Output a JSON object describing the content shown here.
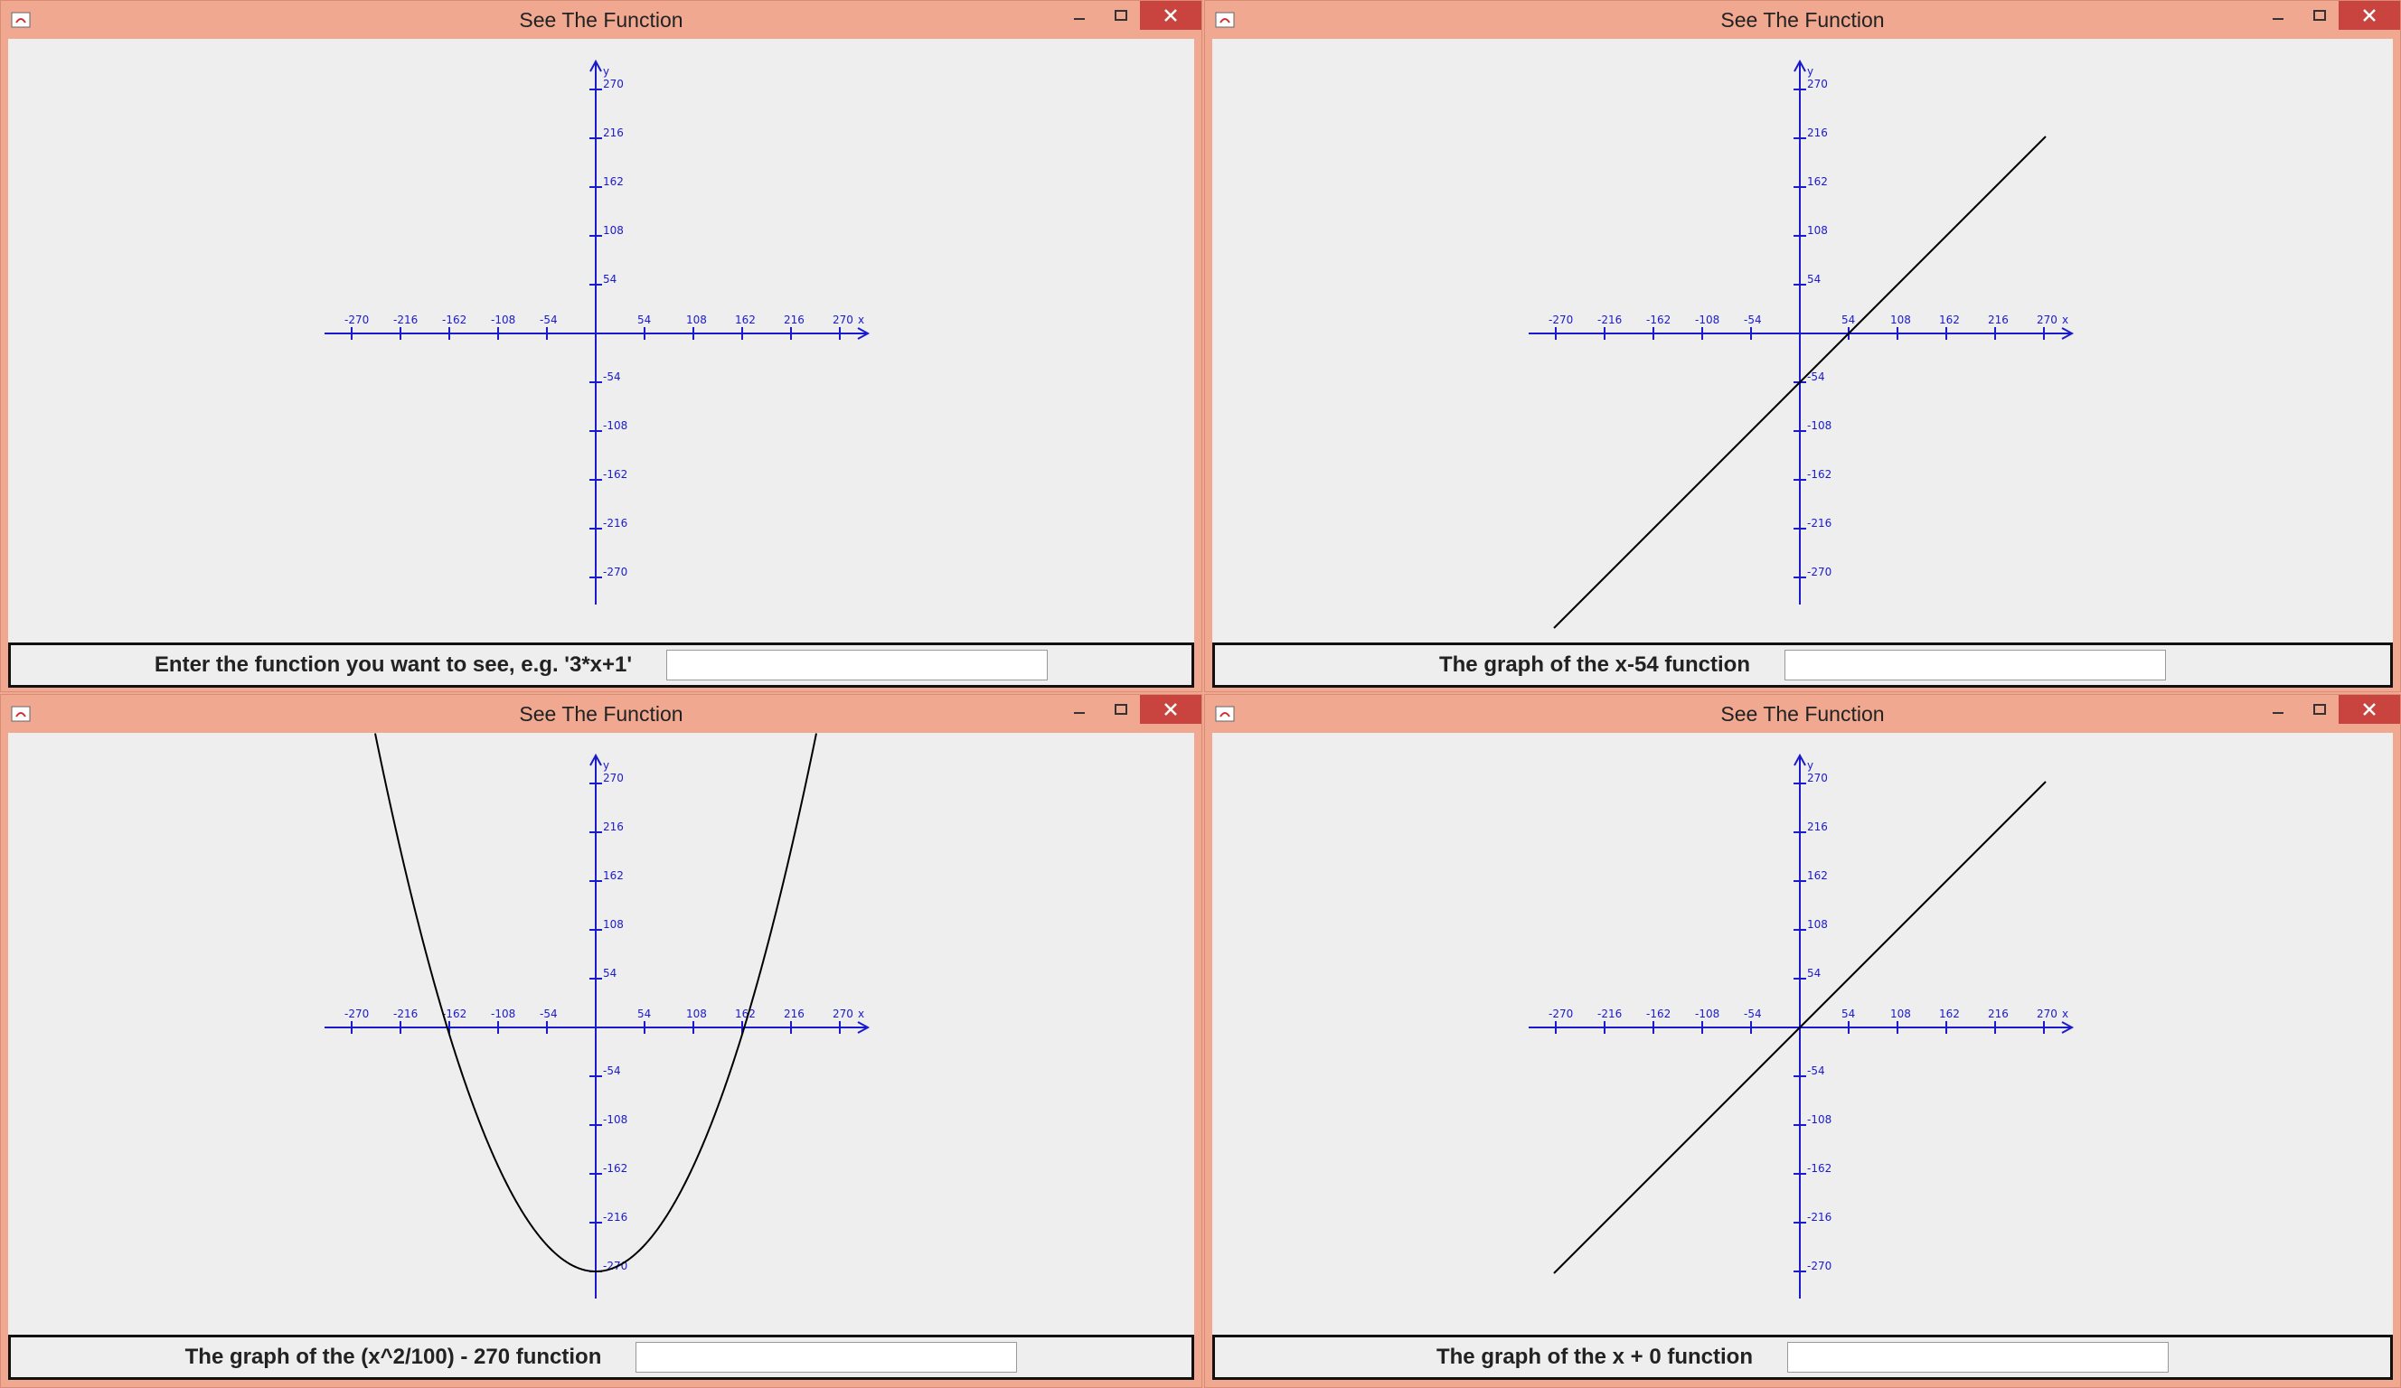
{
  "windows": [
    {
      "id": "w1",
      "title": "See The Function",
      "footer_label": "Enter the function you want to see, e.g. '3*x+1'",
      "input_value": "",
      "function": "none"
    },
    {
      "id": "w2",
      "title": "See The Function",
      "footer_label": "The graph of the x-54 function",
      "input_value": "",
      "function": "x-54"
    },
    {
      "id": "w3",
      "title": "See The Function",
      "footer_label": "The graph of the (x^2/100) - 270 function",
      "input_value": "",
      "function": "(x^2/100) - 270"
    },
    {
      "id": "w4",
      "title": "See The Function",
      "footer_label": "The graph of the x + 0 function",
      "input_value": "",
      "function": "x + 0"
    }
  ],
  "axes": {
    "x_ticks": [
      "-270",
      "-216",
      "-162",
      "-108",
      "-54",
      "54",
      "108",
      "162",
      "216",
      "270"
    ],
    "y_ticks": [
      "270",
      "216",
      "162",
      "108",
      "54",
      "-54",
      "-108",
      "-162",
      "-216",
      "-270"
    ],
    "x_label": "x",
    "y_label": "y",
    "axis_color": "#1a1acc",
    "curve_color": "#000000"
  },
  "colors": {
    "titlebar": "#f0a890",
    "close": "#c9443f",
    "canvas": "#eeeeee"
  }
}
